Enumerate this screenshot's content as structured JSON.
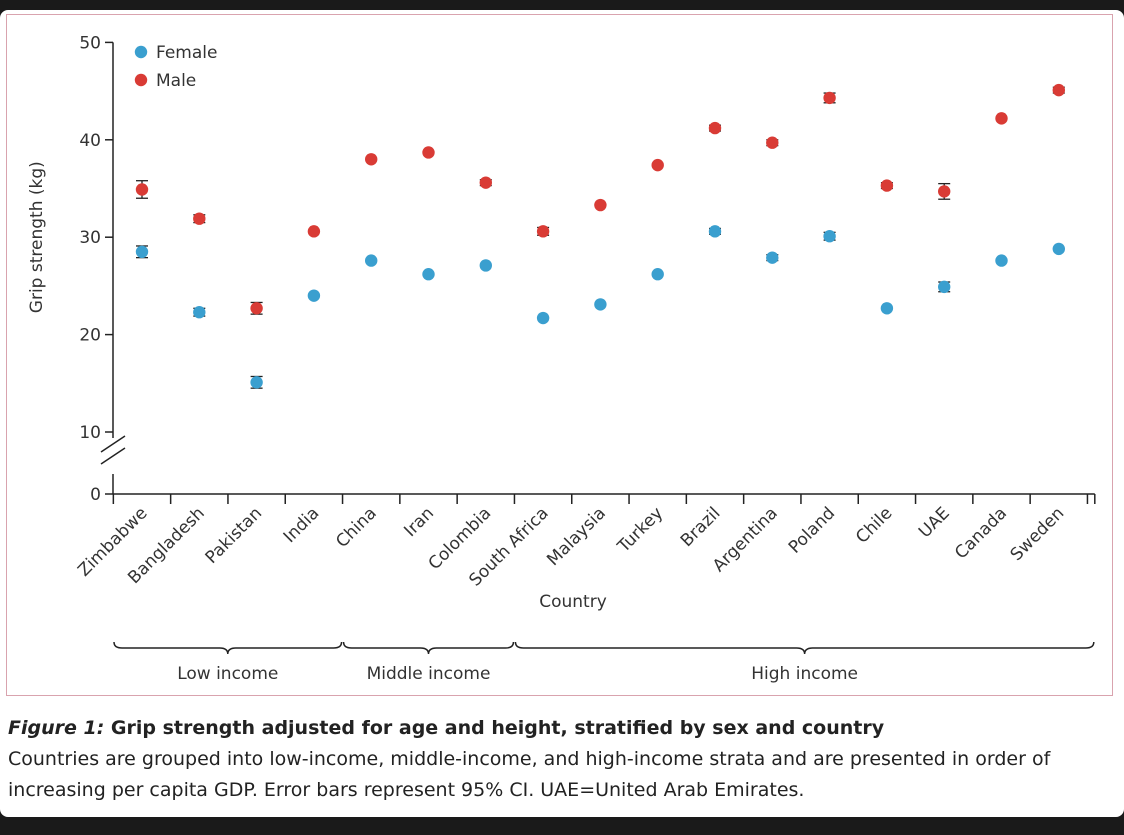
{
  "chart_data": {
    "type": "scatter",
    "ylabel": "Grip strength (kg)",
    "xlabel": "Country",
    "yticks": [
      0,
      10,
      20,
      30,
      40,
      50
    ],
    "ylim": [
      10,
      50
    ],
    "axis_break": true,
    "categories": [
      "Zimbabwe",
      "Bangladesh",
      "Pakistan",
      "India",
      "China",
      "Iran",
      "Colombia",
      "South Africa",
      "Malaysia",
      "Turkey",
      "Brazil",
      "Argentina",
      "Poland",
      "Chile",
      "UAE",
      "Canada",
      "Sweden"
    ],
    "series": [
      {
        "name": "Female",
        "color": "#3a9fcf",
        "values": [
          28.5,
          22.3,
          15.1,
          24.0,
          27.6,
          26.2,
          27.1,
          21.7,
          23.1,
          26.2,
          30.6,
          27.9,
          30.1,
          22.7,
          24.9,
          27.6,
          28.8
        ],
        "err": [
          0.6,
          0.4,
          0.6,
          0.0,
          0.0,
          0.0,
          0.0,
          0.0,
          0.0,
          0.0,
          0.3,
          0.3,
          0.4,
          0.0,
          0.5,
          0.0,
          0.0
        ]
      },
      {
        "name": "Male",
        "color": "#d93b35",
        "values": [
          34.9,
          31.9,
          22.7,
          30.6,
          38.0,
          38.7,
          35.6,
          30.6,
          33.3,
          37.4,
          41.2,
          39.7,
          44.3,
          35.3,
          34.7,
          42.2,
          45.1
        ],
        "err": [
          0.9,
          0.4,
          0.6,
          0.0,
          0.0,
          0.0,
          0.3,
          0.4,
          0.0,
          0.0,
          0.3,
          0.3,
          0.5,
          0.3,
          0.8,
          0.0,
          0.3
        ]
      }
    ],
    "legend": {
      "placement": "top-left"
    },
    "groups": [
      {
        "label": "Low income",
        "start": 0,
        "end": 3
      },
      {
        "label": "Middle income",
        "start": 4,
        "end": 6
      },
      {
        "label": "High income",
        "start": 7,
        "end": 16
      }
    ]
  },
  "caption": {
    "figure_label": "Figure 1:",
    "title": " Grip strength adjusted for age and height, stratified by sex and country",
    "body": "Countries are grouped into low-income, middle-income, and high-income strata and are presented in order of increasing per capita GDP. Error bars represent 95% CI. UAE=United Arab Emirates."
  }
}
